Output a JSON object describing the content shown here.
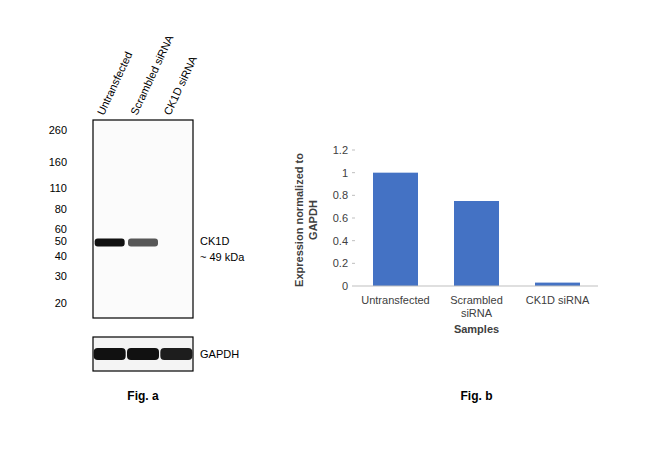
{
  "blot": {
    "lanes": [
      "Untransfected",
      "Scrambled siRNA",
      "CK1D siRNA"
    ],
    "mw_range": [
      300,
      16
    ],
    "mw_ticks": [
      260,
      160,
      110,
      80,
      60,
      50,
      40,
      30,
      20
    ],
    "target_mw": 49,
    "target_label": "CK1D",
    "target_size_label": "~ 49 kDa",
    "band_intensity": [
      1,
      0.7,
      0
    ],
    "loading_label": "GAPDH",
    "loading_band_intensity": [
      1,
      1,
      0.95
    ]
  },
  "chart_data": {
    "type": "bar",
    "categories": [
      "Untransfected",
      "Scrambled siRNA",
      "CK1D siRNA"
    ],
    "values": [
      1,
      0.75,
      0.03
    ],
    "color": "#4472c4",
    "ylim": [
      0,
      1.2
    ],
    "yticks": [
      0,
      0.2,
      0.4,
      0.6,
      0.8,
      1,
      1.2
    ],
    "x_label": "Samples",
    "y_label": "Expression  normalized to GAPDH",
    "grid": false
  },
  "figure_labels": [
    "Fig. a",
    "Fig. b"
  ]
}
